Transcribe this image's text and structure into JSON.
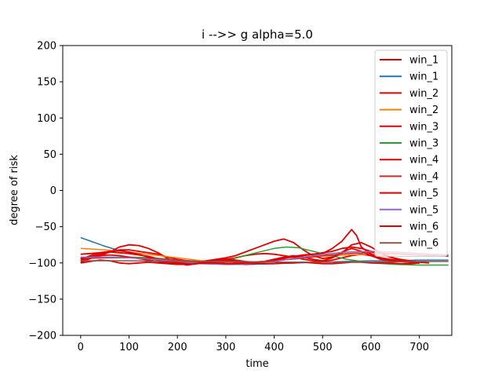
{
  "chart_data": {
    "type": "line",
    "title": "i -->> g  alpha=5.0",
    "xlabel": "time",
    "ylabel": "degree of risk",
    "xlim": [
      -37,
      767
    ],
    "ylim": [
      -200,
      200
    ],
    "xticks": [
      0,
      100,
      200,
      300,
      400,
      500,
      600,
      700
    ],
    "yticks": [
      -200,
      -150,
      -100,
      -50,
      0,
      50,
      100,
      150,
      200
    ],
    "grid": false,
    "legend_position": "top-right",
    "series": [
      {
        "name": "win_1",
        "color": "#e00000",
        "raw": true,
        "x": [
          0,
          20,
          40,
          60,
          80,
          100,
          120,
          140,
          160,
          180,
          200,
          220,
          240,
          260,
          280,
          300,
          320,
          340,
          360,
          380,
          400,
          420,
          440,
          460,
          480,
          500,
          520,
          540,
          560,
          580,
          600,
          620,
          640,
          660,
          680,
          700
        ],
        "y": [
          -97,
          -92,
          -88,
          -85,
          -82,
          -82,
          -84,
          -86,
          -88,
          -92,
          -95,
          -97,
          -98,
          -99,
          -97,
          -95,
          -93,
          -90,
          -88,
          -87,
          -88,
          -90,
          -92,
          -95,
          -97,
          -98,
          -96,
          -93,
          -90,
          -88,
          -90,
          -93,
          -95,
          -97,
          -98,
          -99
        ]
      },
      {
        "name": "win_1",
        "color": "#1f77b4",
        "raw": false,
        "x": [
          0,
          25,
          50,
          75,
          100,
          150,
          200,
          250,
          300,
          350,
          400,
          450,
          500,
          550,
          600,
          650,
          700,
          760
        ],
        "y": [
          -65,
          -71,
          -77,
          -82,
          -86,
          -93,
          -98,
          -101,
          -102,
          -102,
          -101,
          -100,
          -99,
          -98,
          -97,
          -97,
          -96,
          -96
        ]
      },
      {
        "name": "win_2",
        "color": "#e00000",
        "raw": true,
        "x": [
          0,
          20,
          40,
          60,
          80,
          100,
          120,
          140,
          160,
          180,
          200,
          220,
          240,
          260,
          280,
          300,
          320,
          340,
          360,
          380,
          400,
          420,
          440,
          460,
          480,
          500,
          520,
          540,
          560,
          580,
          600,
          620,
          640,
          660,
          680,
          700,
          720
        ],
        "y": [
          -99,
          -94,
          -90,
          -85,
          -78,
          -75,
          -76,
          -80,
          -86,
          -94,
          -100,
          -103,
          -101,
          -98,
          -95,
          -96,
          -100,
          -102,
          -101,
          -98,
          -95,
          -93,
          -92,
          -90,
          -88,
          -86,
          -84,
          -80,
          -78,
          -80,
          -84,
          -88,
          -92,
          -95,
          -97,
          -99,
          -100
        ]
      },
      {
        "name": "win_2",
        "color": "#ff7f0e",
        "raw": false,
        "x": [
          0,
          50,
          100,
          150,
          200,
          250,
          300,
          350,
          400,
          450,
          500,
          550,
          600,
          650,
          700,
          760
        ],
        "y": [
          -80,
          -82,
          -85,
          -89,
          -93,
          -97,
          -99,
          -99,
          -97,
          -94,
          -91,
          -89,
          -88,
          -88,
          -89,
          -90
        ]
      },
      {
        "name": "win_3",
        "color": "#e00000",
        "raw": true,
        "x": [
          0,
          20,
          40,
          60,
          80,
          100,
          120,
          140,
          160,
          180,
          200,
          220,
          240,
          260,
          280,
          300,
          320,
          340,
          360,
          380,
          400,
          420,
          440,
          460,
          480,
          500,
          520,
          540,
          560,
          580,
          600,
          620,
          640,
          660,
          680,
          700
        ],
        "y": [
          -88,
          -87,
          -86,
          -85,
          -86,
          -87,
          -89,
          -91,
          -94,
          -97,
          -99,
          -100,
          -99,
          -97,
          -95,
          -93,
          -90,
          -85,
          -80,
          -75,
          -70,
          -67,
          -72,
          -82,
          -90,
          -94,
          -92,
          -85,
          -80,
          -84,
          -90,
          -95,
          -97,
          -98,
          -99,
          -100
        ]
      },
      {
        "name": "win_3",
        "color": "#2ca02c",
        "raw": false,
        "x": [
          0,
          50,
          100,
          150,
          200,
          250,
          300,
          350,
          400,
          425,
          450,
          500,
          550,
          600,
          650,
          700,
          760
        ],
        "y": [
          -93,
          -92,
          -92,
          -93,
          -96,
          -99,
          -97,
          -88,
          -80,
          -78,
          -79,
          -87,
          -95,
          -100,
          -102,
          -103,
          -103
        ]
      },
      {
        "name": "win_4",
        "color": "#e00000",
        "raw": true,
        "x": [
          0,
          20,
          40,
          60,
          80,
          100,
          120,
          140,
          160,
          180,
          200,
          220,
          240,
          260,
          280,
          300,
          320,
          340,
          360,
          380,
          400,
          420,
          440,
          460,
          480,
          500,
          520,
          540,
          560,
          580,
          600,
          620,
          640,
          660,
          680,
          700
        ],
        "y": [
          -93,
          -92,
          -90,
          -89,
          -90,
          -92,
          -94,
          -96,
          -98,
          -100,
          -101,
          -101,
          -100,
          -98,
          -96,
          -95,
          -96,
          -98,
          -99,
          -98,
          -95,
          -92,
          -90,
          -92,
          -95,
          -97,
          -93,
          -86,
          -75,
          -72,
          -78,
          -86,
          -92,
          -96,
          -98,
          -99
        ]
      },
      {
        "name": "win_4",
        "color": "#d62728",
        "raw": false,
        "x": [
          0,
          50,
          100,
          150,
          200,
          250,
          300,
          350,
          400,
          450,
          500,
          550,
          600,
          650,
          700,
          760
        ],
        "y": [
          -94,
          -93,
          -93,
          -94,
          -96,
          -98,
          -99,
          -99,
          -97,
          -94,
          -90,
          -87,
          -86,
          -87,
          -89,
          -91
        ]
      },
      {
        "name": "win_5",
        "color": "#e00000",
        "raw": true,
        "x": [
          0,
          20,
          40,
          60,
          80,
          100,
          120,
          140,
          160,
          180,
          200,
          220,
          240,
          260,
          280,
          300,
          320,
          340,
          360,
          380,
          400,
          420,
          440,
          460,
          480,
          500,
          520,
          540,
          550,
          560,
          570,
          580,
          600,
          620,
          640,
          660,
          680,
          700
        ],
        "y": [
          -95,
          -90,
          -86,
          -84,
          -83,
          -85,
          -88,
          -92,
          -96,
          -99,
          -101,
          -102,
          -101,
          -99,
          -97,
          -96,
          -97,
          -99,
          -100,
          -99,
          -97,
          -94,
          -91,
          -89,
          -88,
          -87,
          -80,
          -70,
          -62,
          -54,
          -62,
          -78,
          -88,
          -93,
          -96,
          -98,
          -99,
          -100
        ]
      },
      {
        "name": "win_5",
        "color": "#9467bd",
        "raw": false,
        "x": [
          0,
          50,
          100,
          150,
          200,
          250,
          300,
          350,
          400,
          450,
          500,
          550,
          600,
          650,
          700,
          760
        ],
        "y": [
          -92,
          -92,
          -93,
          -95,
          -98,
          -101,
          -102,
          -101,
          -98,
          -93,
          -88,
          -85,
          -84,
          -85,
          -87,
          -89
        ]
      },
      {
        "name": "win_6",
        "color": "#e00000",
        "raw": true,
        "x": [
          0,
          20,
          40,
          60,
          80,
          100,
          120,
          140,
          160,
          180,
          200,
          220,
          240,
          260,
          280,
          300,
          320,
          340,
          360,
          380,
          400,
          420,
          440,
          460,
          480,
          500,
          520,
          540,
          560,
          580,
          600,
          620,
          640,
          660,
          680,
          700
        ],
        "y": [
          -100,
          -98,
          -96,
          -97,
          -100,
          -101,
          -100,
          -99,
          -100,
          -101,
          -102,
          -102,
          -101,
          -100,
          -100,
          -101,
          -101,
          -100,
          -100,
          -101,
          -101,
          -100,
          -100,
          -99,
          -100,
          -101,
          -101,
          -100,
          -99,
          -99,
          -100,
          -100,
          -100,
          -101,
          -101,
          -100
        ]
      },
      {
        "name": "win_6",
        "color": "#8c564b",
        "raw": false,
        "x": [
          0,
          100,
          200,
          300,
          400,
          500,
          600,
          700,
          760
        ],
        "y": [
          -97,
          -97,
          -98,
          -98,
          -99,
          -99,
          -99,
          -98,
          -98
        ]
      }
    ]
  }
}
